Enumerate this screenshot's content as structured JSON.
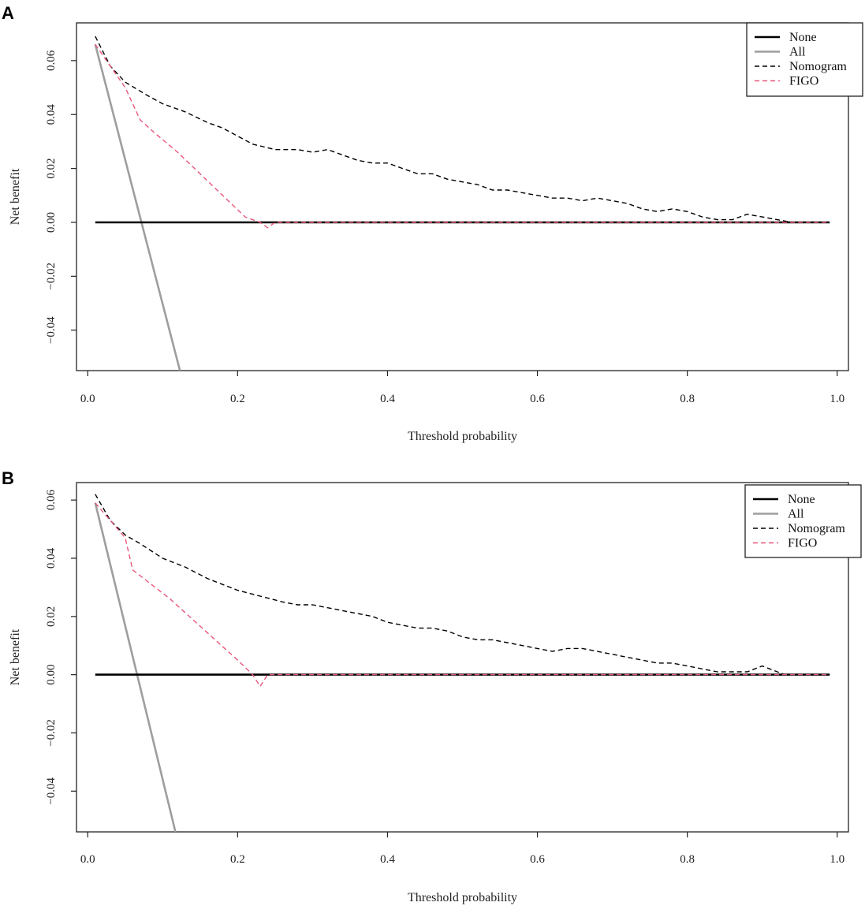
{
  "chart_data": [
    {
      "type": "line",
      "panel_label": "A",
      "xlabel": "Threshold probability",
      "ylabel": "Net benefit",
      "xlim": [
        -0.015,
        1.015
      ],
      "ylim": [
        -0.055,
        0.074
      ],
      "x_ticks": [
        0.0,
        0.2,
        0.4,
        0.6,
        0.8,
        1.0
      ],
      "x_tick_labels": [
        "0.0",
        "0.2",
        "0.4",
        "0.6",
        "0.8",
        "1.0"
      ],
      "y_ticks": [
        -0.04,
        -0.02,
        0.0,
        0.02,
        0.04,
        0.06
      ],
      "y_tick_labels": [
        "−0.04",
        "−0.02",
        "0.00",
        "0.02",
        "0.04",
        "0.06"
      ],
      "legend_position": "top-right",
      "series": [
        {
          "name": "None",
          "color": "#000000",
          "style": "solid",
          "width": 2.6,
          "x": [
            0.01,
            0.99
          ],
          "y": [
            0.0,
            0.0
          ]
        },
        {
          "name": "All",
          "color": "#9e9e9e",
          "style": "solid",
          "width": 2.6,
          "x": [
            0.01,
            0.123
          ],
          "y": [
            0.066,
            -0.055
          ]
        },
        {
          "name": "Nomogram",
          "color": "#000000",
          "style": "dashed",
          "width": 1.4,
          "x": [
            0.01,
            0.03,
            0.05,
            0.08,
            0.1,
            0.13,
            0.16,
            0.18,
            0.2,
            0.22,
            0.25,
            0.28,
            0.3,
            0.32,
            0.34,
            0.36,
            0.38,
            0.4,
            0.42,
            0.44,
            0.46,
            0.48,
            0.5,
            0.52,
            0.54,
            0.56,
            0.58,
            0.6,
            0.62,
            0.64,
            0.66,
            0.68,
            0.7,
            0.72,
            0.74,
            0.76,
            0.78,
            0.8,
            0.82,
            0.84,
            0.86,
            0.87,
            0.88,
            0.9,
            0.92,
            0.94,
            0.96,
            0.99
          ],
          "y": [
            0.069,
            0.058,
            0.052,
            0.047,
            0.044,
            0.041,
            0.037,
            0.035,
            0.032,
            0.029,
            0.027,
            0.027,
            0.026,
            0.027,
            0.025,
            0.023,
            0.022,
            0.022,
            0.02,
            0.018,
            0.018,
            0.016,
            0.015,
            0.014,
            0.012,
            0.012,
            0.011,
            0.01,
            0.009,
            0.009,
            0.008,
            0.009,
            0.008,
            0.007,
            0.005,
            0.004,
            0.005,
            0.004,
            0.002,
            0.001,
            0.001,
            0.002,
            0.003,
            0.002,
            0.001,
            0.0,
            0.0,
            0.0
          ]
        },
        {
          "name": "FIGO",
          "color": "#e8577a",
          "style": "dashed",
          "width": 1.4,
          "x": [
            0.01,
            0.03,
            0.05,
            0.07,
            0.09,
            0.12,
            0.15,
            0.18,
            0.21,
            0.23,
            0.24,
            0.25,
            0.99
          ],
          "y": [
            0.066,
            0.058,
            0.05,
            0.038,
            0.033,
            0.026,
            0.018,
            0.01,
            0.002,
            0.0,
            -0.002,
            0.0,
            0.0
          ]
        }
      ]
    },
    {
      "type": "line",
      "panel_label": "B",
      "xlabel": "Threshold probability",
      "ylabel": "Net benefit",
      "xlim": [
        -0.015,
        1.015
      ],
      "ylim": [
        -0.054,
        0.066
      ],
      "x_ticks": [
        0.0,
        0.2,
        0.4,
        0.6,
        0.8,
        1.0
      ],
      "x_tick_labels": [
        "0.0",
        "0.2",
        "0.4",
        "0.6",
        "0.8",
        "1.0"
      ],
      "y_ticks": [
        -0.04,
        -0.02,
        0.0,
        0.02,
        0.04,
        0.06
      ],
      "y_tick_labels": [
        "−0.04",
        "−0.02",
        "0.00",
        "0.02",
        "0.04",
        "0.06"
      ],
      "legend_position": "top-right",
      "series": [
        {
          "name": "None",
          "color": "#000000",
          "style": "solid",
          "width": 2.6,
          "x": [
            0.01,
            0.99
          ],
          "y": [
            0.0,
            0.0
          ]
        },
        {
          "name": "All",
          "color": "#9e9e9e",
          "style": "solid",
          "width": 2.6,
          "x": [
            0.01,
            0.117
          ],
          "y": [
            0.059,
            -0.054
          ]
        },
        {
          "name": "Nomogram",
          "color": "#000000",
          "style": "dashed",
          "width": 1.4,
          "x": [
            0.01,
            0.03,
            0.05,
            0.07,
            0.1,
            0.13,
            0.16,
            0.18,
            0.2,
            0.23,
            0.26,
            0.28,
            0.3,
            0.32,
            0.34,
            0.36,
            0.38,
            0.4,
            0.42,
            0.44,
            0.46,
            0.48,
            0.5,
            0.52,
            0.54,
            0.56,
            0.58,
            0.6,
            0.62,
            0.64,
            0.66,
            0.68,
            0.7,
            0.72,
            0.74,
            0.76,
            0.78,
            0.8,
            0.82,
            0.84,
            0.86,
            0.87,
            0.88,
            0.89,
            0.9,
            0.91,
            0.93,
            0.99
          ],
          "y": [
            0.062,
            0.053,
            0.048,
            0.045,
            0.04,
            0.037,
            0.033,
            0.031,
            0.029,
            0.027,
            0.025,
            0.024,
            0.024,
            0.023,
            0.022,
            0.021,
            0.02,
            0.018,
            0.017,
            0.016,
            0.016,
            0.015,
            0.013,
            0.012,
            0.012,
            0.011,
            0.01,
            0.009,
            0.008,
            0.009,
            0.009,
            0.008,
            0.007,
            0.006,
            0.005,
            0.004,
            0.004,
            0.003,
            0.002,
            0.001,
            0.001,
            0.001,
            0.001,
            0.002,
            0.003,
            0.002,
            0.0,
            0.0
          ]
        },
        {
          "name": "FIGO",
          "color": "#e8577a",
          "style": "dashed",
          "width": 1.4,
          "x": [
            0.01,
            0.03,
            0.05,
            0.06,
            0.08,
            0.11,
            0.14,
            0.17,
            0.2,
            0.22,
            0.23,
            0.24,
            0.99
          ],
          "y": [
            0.059,
            0.053,
            0.047,
            0.036,
            0.032,
            0.026,
            0.019,
            0.012,
            0.005,
            0.0,
            -0.004,
            0.0,
            0.0
          ]
        }
      ]
    }
  ]
}
